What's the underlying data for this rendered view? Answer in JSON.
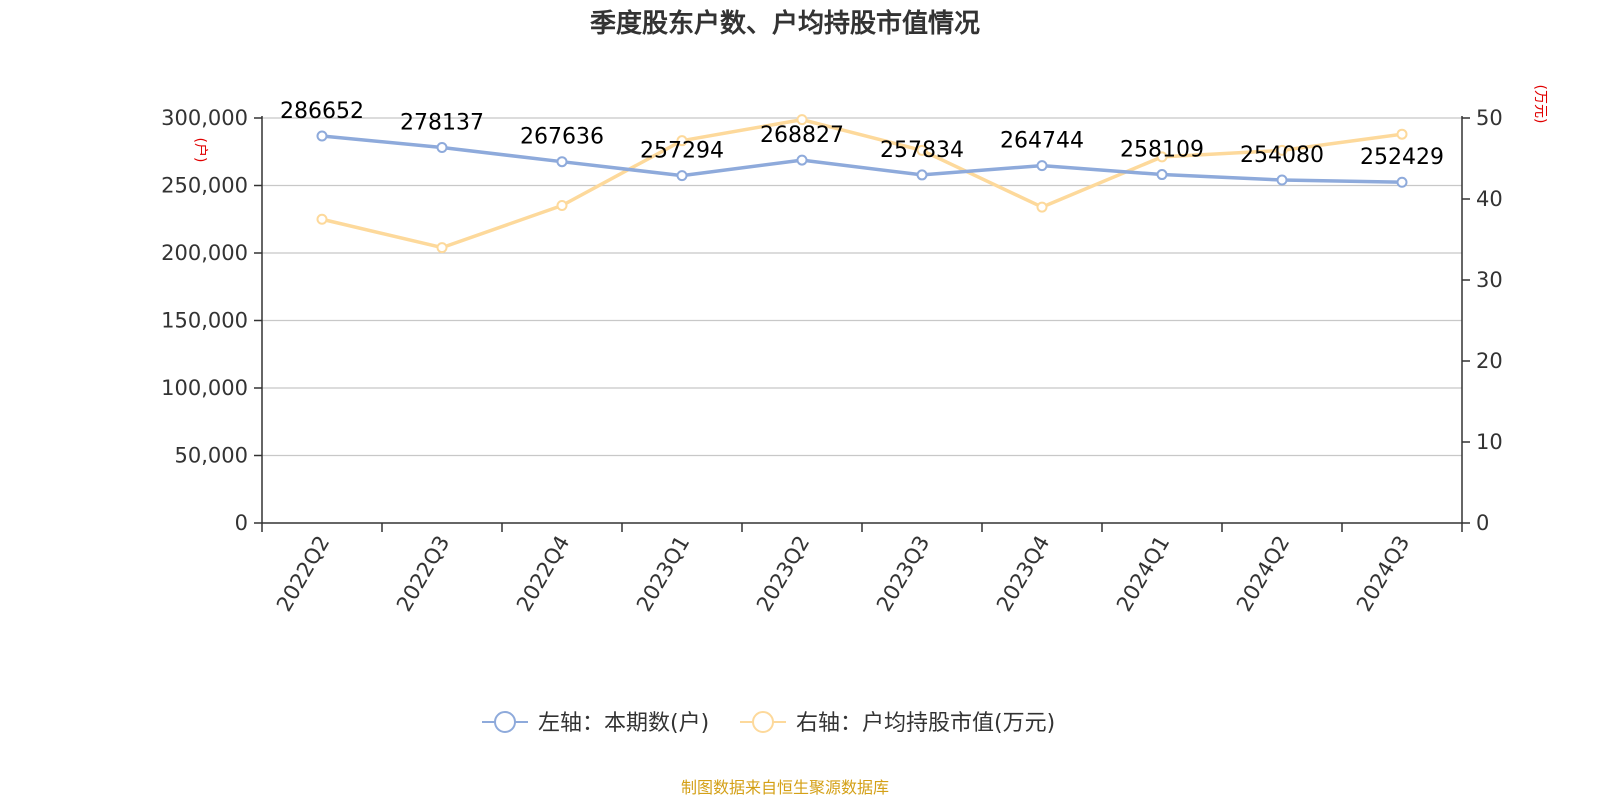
{
  "chart_data": {
    "type": "line",
    "title": "季度股东户数、户均持股市值情况",
    "categories": [
      "2022Q2",
      "2022Q3",
      "2022Q4",
      "2023Q1",
      "2023Q2",
      "2023Q3",
      "2023Q4",
      "2024Q1",
      "2024Q2",
      "2024Q3"
    ],
    "left_axis": {
      "unit_label": "(户)",
      "ylim": [
        0,
        300000
      ],
      "ticks": [
        "0",
        "50,000",
        "100,000",
        "150,000",
        "200,000",
        "250,000",
        "300,000"
      ],
      "tick_values": [
        0,
        50000,
        100000,
        150000,
        200000,
        250000,
        300000
      ]
    },
    "right_axis": {
      "unit_label": "(万元)",
      "ylim": [
        0,
        50
      ],
      "ticks": [
        "0",
        "10",
        "20",
        "30",
        "40",
        "50"
      ],
      "tick_values": [
        0,
        10,
        20,
        30,
        40,
        50
      ]
    },
    "series": [
      {
        "name": "左轴：本期数(户)",
        "axis": "left",
        "color": "#8eaadb",
        "values": [
          286652,
          278137,
          267636,
          257294,
          268827,
          257834,
          264744,
          258109,
          254080,
          252429
        ],
        "labels": [
          "286652",
          "278137",
          "267636",
          "257294",
          "268827",
          "257834",
          "264744",
          "258109",
          "254080",
          "252429"
        ]
      },
      {
        "name": "右轴：户均持股市值(万元)",
        "axis": "right",
        "color": "#fdd99b",
        "values": [
          37.5,
          34.0,
          39.2,
          47.2,
          49.8,
          46.0,
          39.0,
          45.2,
          46.0,
          48.0
        ]
      }
    ],
    "grid": true,
    "legend_position": "bottom",
    "source": "制图数据来自恒生聚源数据库"
  }
}
